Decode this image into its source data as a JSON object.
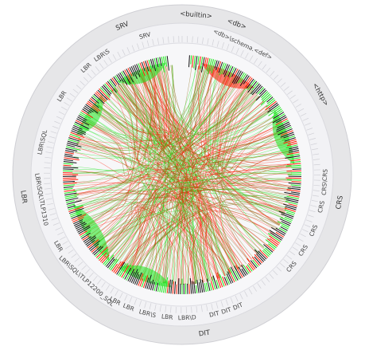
{
  "outer_labels": [
    {
      "text": "SRV",
      "angle": -22
    },
    {
      "text": "<builtin>",
      "angle": 5
    },
    {
      "text": "<db>",
      "angle": 20
    },
    {
      "text": "<http>",
      "angle": 60
    },
    {
      "text": "CRS",
      "angle": 100
    },
    {
      "text": "DIT",
      "angle": 172
    },
    {
      "text": "LBR",
      "angle": 262
    }
  ],
  "inner_labels": [
    {
      "text": "SRV",
      "angle": -15
    },
    {
      "text": "<db>\\schema.<def>",
      "angle": 25
    },
    {
      "text": "CRS\\CRS",
      "angle": 93
    },
    {
      "text": "CRS",
      "angle": 103
    },
    {
      "text": "CRS",
      "angle": 113
    },
    {
      "text": "CRS",
      "angle": 122
    },
    {
      "text": "CRS",
      "angle": 130
    },
    {
      "text": "DIT",
      "angle": 157
    },
    {
      "text": "DIT",
      "angle": 162
    },
    {
      "text": "DIT",
      "angle": 167
    },
    {
      "text": "LBR\\D",
      "angle": 178
    },
    {
      "text": "LBR",
      "angle": 186
    },
    {
      "text": "LBR\\S",
      "angle": 194
    },
    {
      "text": "LBR",
      "angle": 202
    },
    {
      "text": "LBR",
      "angle": 208
    },
    {
      "text": "LBR\\SQL\\TLP12200_SQL",
      "angle": 222
    },
    {
      "text": "LBR",
      "angle": 240
    },
    {
      "text": "LBR\\SQL\\TLP1310",
      "angle": 260
    },
    {
      "text": "LBR\\SQL",
      "angle": 283
    },
    {
      "text": "LBR",
      "angle": 303
    },
    {
      "text": "LBR",
      "angle": 318
    },
    {
      "text": "LBR\\S",
      "angle": 326
    }
  ],
  "colors": {
    "ring_outer": "#e6e6e8",
    "ring_inner": "#f4f4f6",
    "edge_start": "#ff1a00",
    "edge_end": "#19e619",
    "node_dark": "#111111"
  }
}
